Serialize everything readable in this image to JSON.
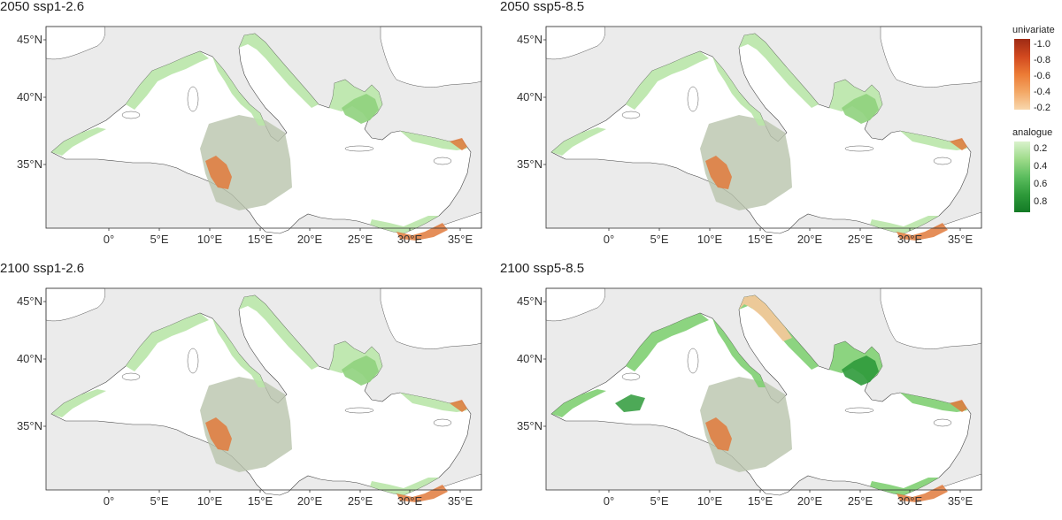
{
  "panels": [
    {
      "title": "2050 ssp1-2.6",
      "scenario": "2050-ssp1"
    },
    {
      "title": "2050 ssp5-8.5",
      "scenario": "2050-ssp5"
    },
    {
      "title": "2100 ssp1-2.6",
      "scenario": "2100-ssp1"
    },
    {
      "title": "2100 ssp5-8.5",
      "scenario": "2100-ssp5"
    }
  ],
  "lat_labels": [
    "45°N",
    "40°N",
    "35°N"
  ],
  "lon_labels": [
    "0°",
    "5°E",
    "10°E",
    "15°E",
    "20°E",
    "25°E",
    "30°E",
    "35°E"
  ],
  "legend": {
    "univariate_title": "univariate",
    "univariate_ticks": [
      "-1.0",
      "-0.8",
      "-0.6",
      "-0.4",
      "-0.2"
    ],
    "analogue_title": "analogue",
    "analogue_ticks": [
      "0.2",
      "0.4",
      "0.6",
      "0.8"
    ]
  },
  "colors": {
    "land": "#ebebeb",
    "sea": "#ffffff",
    "shelf_green_light": "#b9e6a8",
    "shelf_green_dark": "#2e9a3a",
    "univariate_orange": "#e07a3c",
    "univariate_red": "#b3391c",
    "univariate_pale": "#f6c89a",
    "libya_shade": "#b9c4ad"
  }
}
